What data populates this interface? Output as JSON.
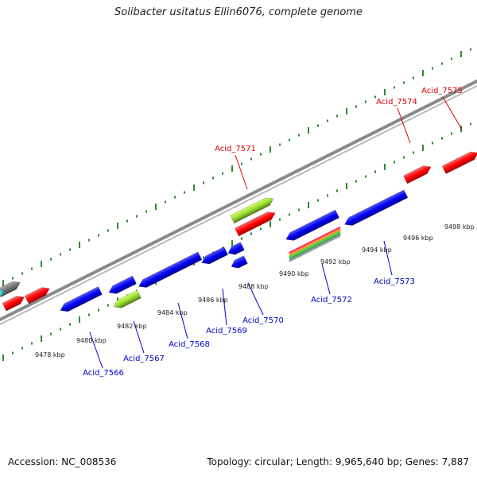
{
  "title": "Solibacter usitatus Ellin6076, complete genome",
  "footer": {
    "accession": "Accession: NC_008536",
    "summary": "Topology: circular; Length: 9,965,640 bp; Genes: 7,887"
  },
  "colors": {
    "forward_gene": "#ff0000",
    "reverse_gene": "#0000ee",
    "rna_green": "#9acd32",
    "backbone": "#8a8a8a",
    "tick": "#2e8b2e",
    "forward_label": "#dd0000",
    "reverse_label": "#0000cc"
  },
  "scale_labels": [
    "9478 kbp",
    "9480 kbp",
    "9482 kbp",
    "9484 kbp",
    "9486 kbp",
    "9488 kbp",
    "9490 kbp",
    "9492 kbp",
    "9494 kbp",
    "9496 kbp",
    "9498 kbp"
  ],
  "forward_labels": [
    "Acid_7571",
    "Acid_7574",
    "Acid_7575"
  ],
  "reverse_labels": [
    "Acid_7566",
    "Acid_7567",
    "Acid_7568",
    "Acid_7569",
    "Acid_7570",
    "Acid_7572",
    "Acid_7573"
  ]
}
